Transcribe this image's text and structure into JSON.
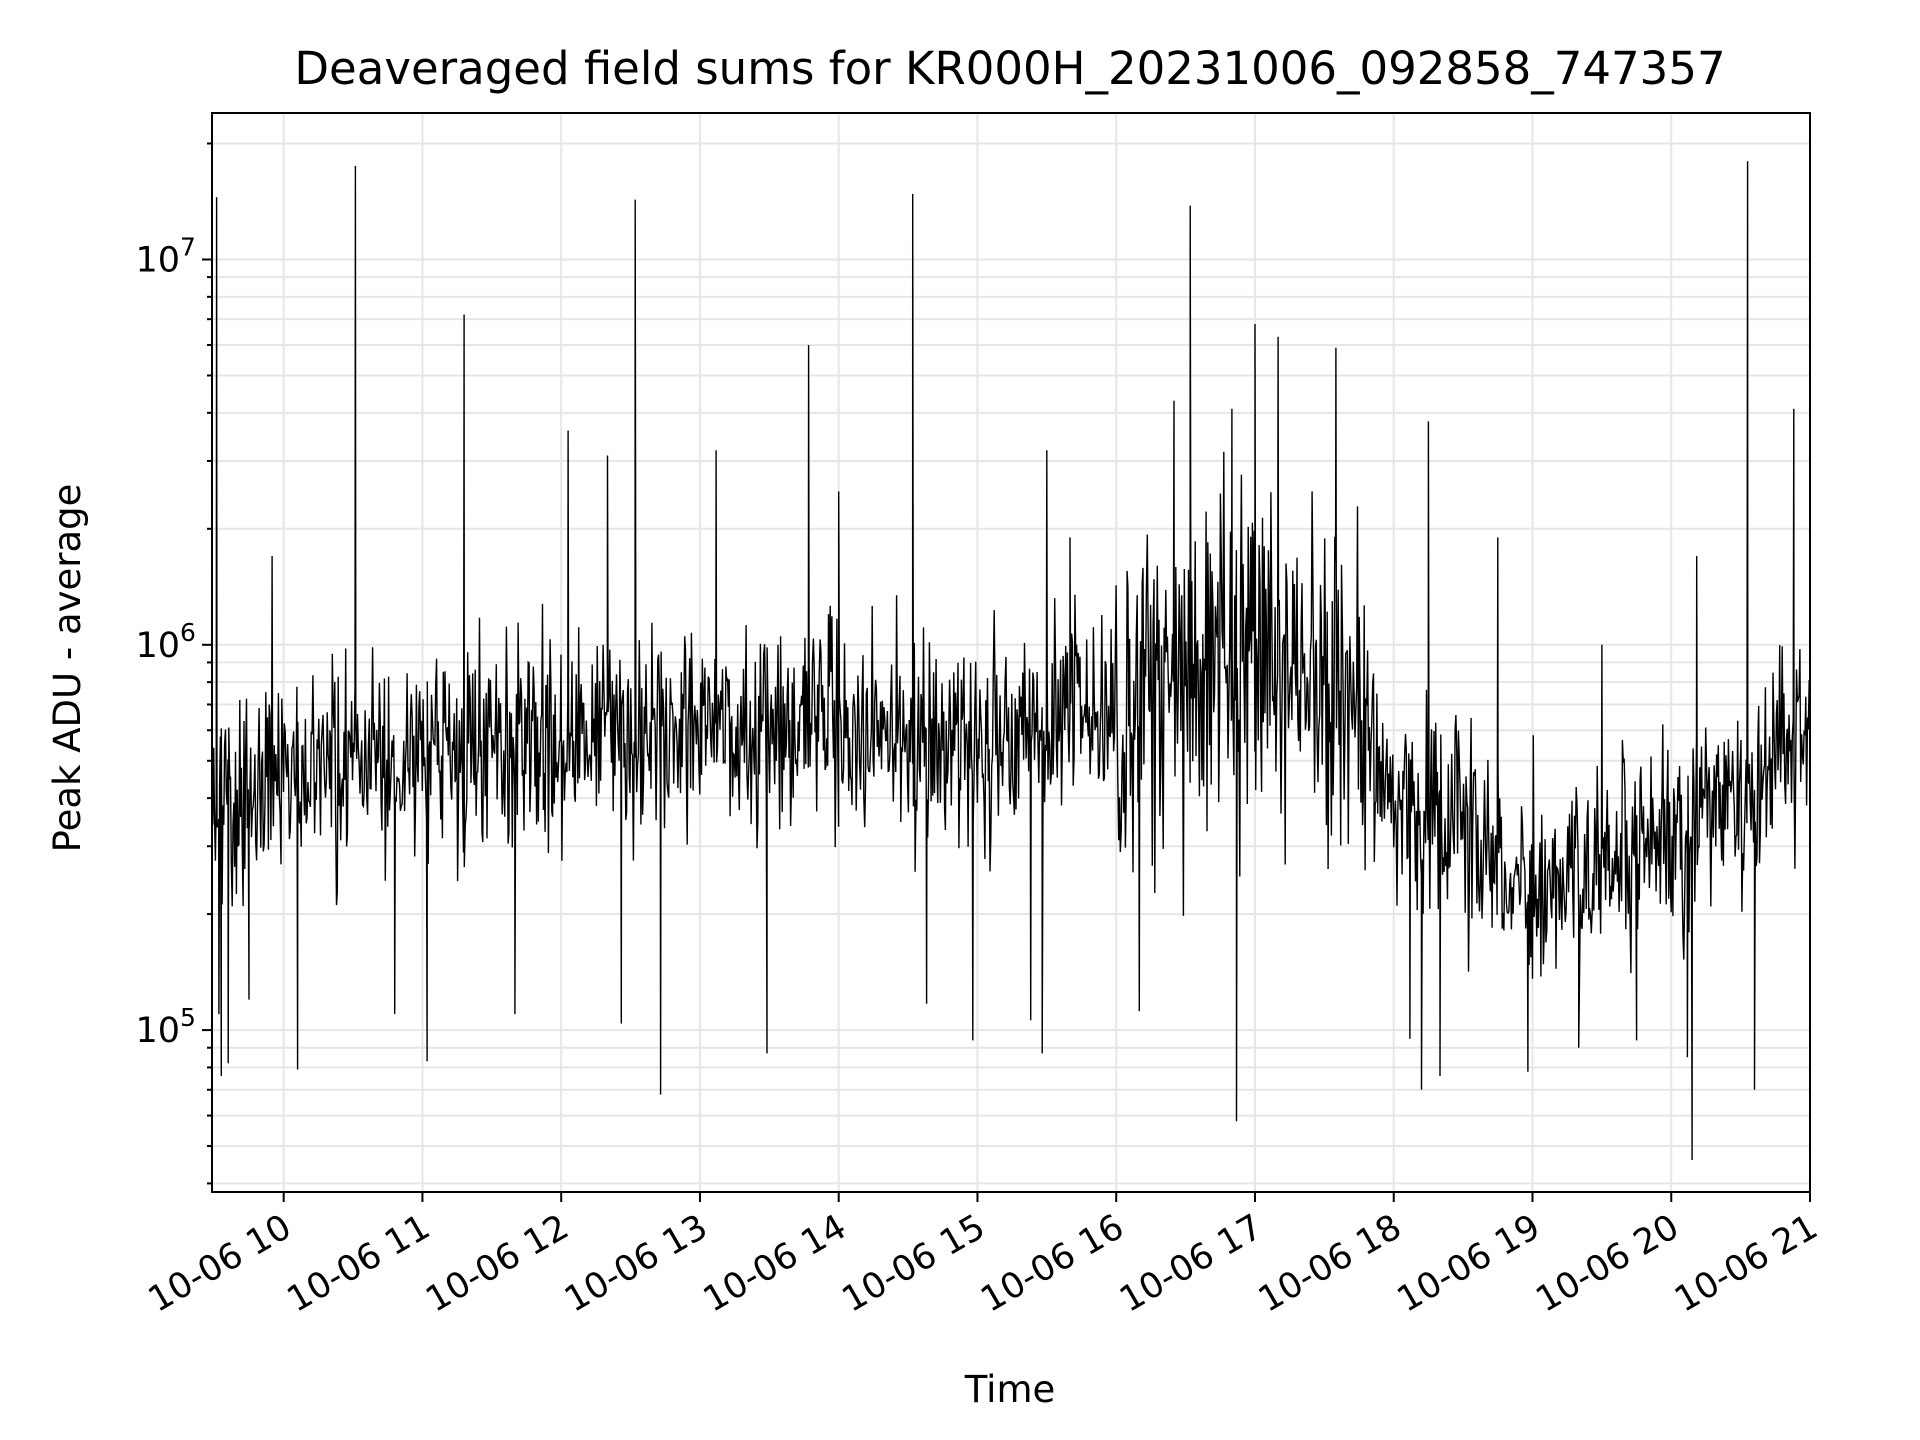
{
  "chart_data": {
    "type": "line",
    "title": "Deaveraged field sums for KR000H_20231006_092858_747357",
    "xlabel": "Time",
    "ylabel": "Peak ADU - average",
    "xlim": [
      "2023-10-06 09:29",
      "2023-10-06 21:00"
    ],
    "ylim": [
      38000,
      24000000
    ],
    "yscale": "log",
    "grid": true,
    "line_color": "#000000",
    "x_ticks": [
      "10-06 10",
      "10-06 11",
      "10-06 12",
      "10-06 13",
      "10-06 14",
      "10-06 15",
      "10-06 16",
      "10-06 17",
      "10-06 18",
      "10-06 19",
      "10-06 20",
      "10-06 21"
    ],
    "y_ticks": [
      {
        "base": "10",
        "exp": "5",
        "value": 100000
      },
      {
        "base": "10",
        "exp": "6",
        "value": 1000000
      },
      {
        "base": "10",
        "exp": "7",
        "value": 10000000
      }
    ],
    "series": [
      {
        "color": "#000000",
        "points": [
          [
            "2023-10-06 09:30",
            400000
          ],
          [
            "2023-10-06 09:31",
            14500000
          ],
          [
            "2023-10-06 09:32",
            110000
          ],
          [
            "2023-10-06 09:33",
            76000
          ],
          [
            "2023-10-06 09:36",
            82000
          ],
          [
            "2023-10-06 09:45",
            120000
          ],
          [
            "2023-10-06 09:55",
            1700000
          ],
          [
            "2023-10-06 10:06",
            79000
          ],
          [
            "2023-10-06 10:20",
            600000
          ],
          [
            "2023-10-06 10:31",
            17500000
          ],
          [
            "2023-10-06 10:48",
            110000
          ],
          [
            "2023-10-06 11:02",
            83000
          ],
          [
            "2023-10-06 11:18",
            7200000
          ],
          [
            "2023-10-06 11:40",
            110000
          ],
          [
            "2023-10-06 12:03",
            3600000
          ],
          [
            "2023-10-06 12:20",
            3100000
          ],
          [
            "2023-10-06 12:26",
            104000
          ],
          [
            "2023-10-06 12:32",
            14300000
          ],
          [
            "2023-10-06 12:43",
            68000
          ],
          [
            "2023-10-06 13:07",
            3200000
          ],
          [
            "2023-10-06 13:29",
            87000
          ],
          [
            "2023-10-06 13:47",
            6000000
          ],
          [
            "2023-10-06 14:00",
            2500000
          ],
          [
            "2023-10-06 14:32",
            14800000
          ],
          [
            "2023-10-06 14:38",
            117000
          ],
          [
            "2023-10-06 14:58",
            94000
          ],
          [
            "2023-10-06 15:23",
            106000
          ],
          [
            "2023-10-06 15:28",
            87000
          ],
          [
            "2023-10-06 15:30",
            3200000
          ],
          [
            "2023-10-06 15:40",
            1900000
          ],
          [
            "2023-10-06 16:10",
            112000
          ],
          [
            "2023-10-06 16:25",
            4300000
          ],
          [
            "2023-10-06 16:32",
            13800000
          ],
          [
            "2023-10-06 16:50",
            4100000
          ],
          [
            "2023-10-06 16:52",
            58000
          ],
          [
            "2023-10-06 17:00",
            6800000
          ],
          [
            "2023-10-06 17:10",
            6300000
          ],
          [
            "2023-10-06 17:35",
            5900000
          ],
          [
            "2023-10-06 18:07",
            95000
          ],
          [
            "2023-10-06 18:12",
            70000
          ],
          [
            "2023-10-06 18:15",
            3800000
          ],
          [
            "2023-10-06 18:20",
            76000
          ],
          [
            "2023-10-06 18:45",
            1900000
          ],
          [
            "2023-10-06 18:58",
            78000
          ],
          [
            "2023-10-06 19:20",
            90000
          ],
          [
            "2023-10-06 19:30",
            1000000
          ],
          [
            "2023-10-06 19:45",
            94000
          ],
          [
            "2023-10-06 20:07",
            85000
          ],
          [
            "2023-10-06 20:09",
            46000
          ],
          [
            "2023-10-06 20:11",
            1700000
          ],
          [
            "2023-10-06 20:33",
            18000000
          ],
          [
            "2023-10-06 20:36",
            70000
          ],
          [
            "2023-10-06 20:53",
            4100000
          ],
          [
            "2023-10-06 21:00",
            500000
          ]
        ]
      }
    ]
  }
}
